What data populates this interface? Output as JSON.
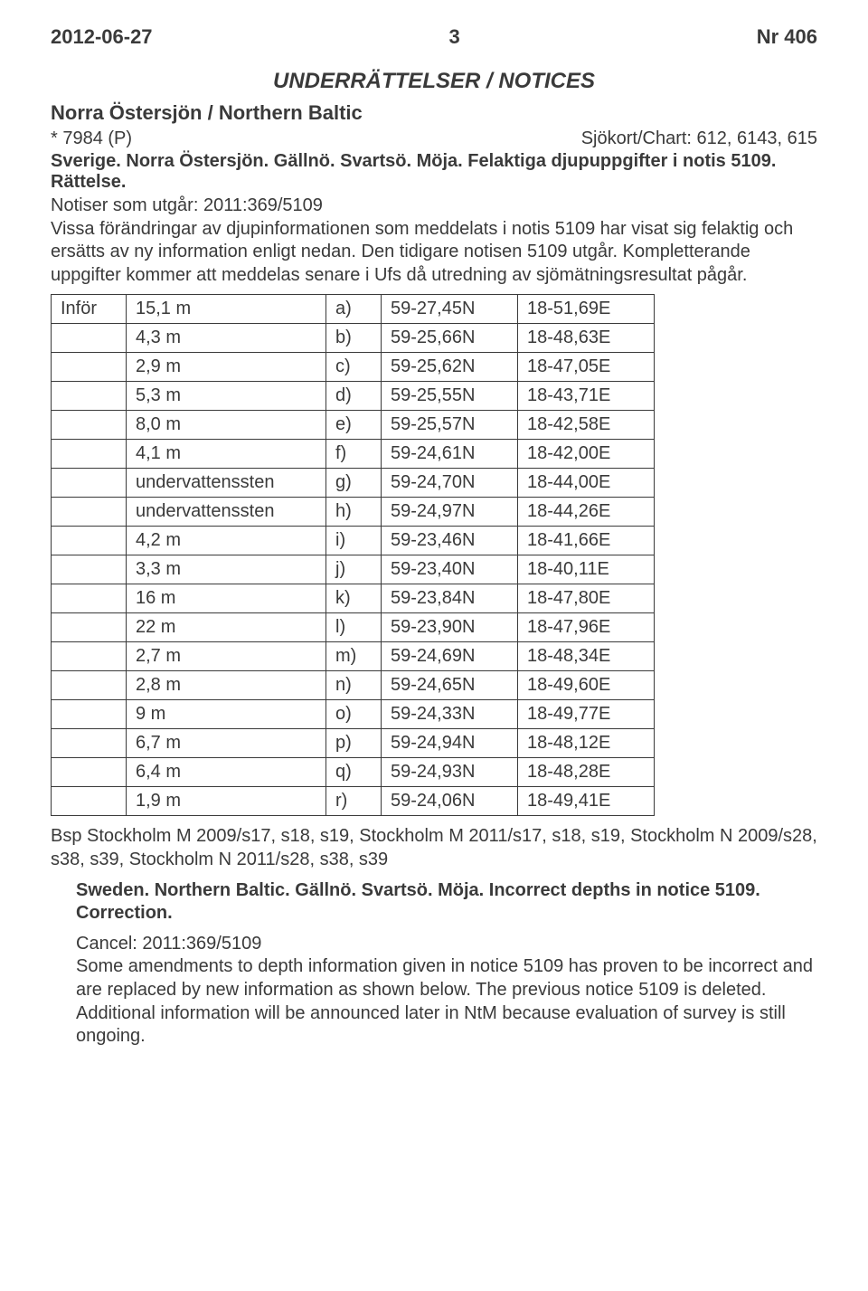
{
  "header": {
    "date": "2012-06-27",
    "page": "3",
    "issue": "Nr 406"
  },
  "main_title": "UNDERRÄTTELSER / NOTICES",
  "region_line": "Norra Östersjön / Northern Baltic",
  "notice_ref": "* 7984 (P)",
  "chart_label": "Sjökort/Chart: 612, 6143, 615",
  "loc_line": "Sverige. Norra Östersjön. Gällnö. Svartsö. Möja. Felaktiga djupuppgifter i notis 5109. Rättelse.",
  "body_sv": "Notiser som utgår: 2011:369/5109\nVissa förändringar av djupinformationen som meddelats i notis 5109 har visat sig felaktig och ersätts av ny information enligt nedan. Den tidigare notisen 5109 utgår. Kompletterande uppgifter kommer att meddelas senare i Ufs då utredning av sjömätningsresultat pågår.",
  "table": {
    "infor_label": "Inför",
    "rows": [
      {
        "val": "15,1 m",
        "letter": "a)",
        "lat": "59-27,45N",
        "lon": "18-51,69E"
      },
      {
        "val": "4,3 m",
        "letter": "b)",
        "lat": "59-25,66N",
        "lon": "18-48,63E"
      },
      {
        "val": "2,9 m",
        "letter": "c)",
        "lat": "59-25,62N",
        "lon": "18-47,05E"
      },
      {
        "val": "5,3 m",
        "letter": "d)",
        "lat": "59-25,55N",
        "lon": "18-43,71E"
      },
      {
        "val": "8,0 m",
        "letter": "e)",
        "lat": "59-25,57N",
        "lon": "18-42,58E"
      },
      {
        "val": "4,1 m",
        "letter": "f)",
        "lat": "59-24,61N",
        "lon": "18-42,00E"
      },
      {
        "val": "undervattenssten",
        "letter": "g)",
        "lat": "59-24,70N",
        "lon": "18-44,00E"
      },
      {
        "val": "undervattenssten",
        "letter": "h)",
        "lat": "59-24,97N",
        "lon": "18-44,26E"
      },
      {
        "val": "4,2 m",
        "letter": "i)",
        "lat": "59-23,46N",
        "lon": "18-41,66E"
      },
      {
        "val": "3,3 m",
        "letter": "j)",
        "lat": "59-23,40N",
        "lon": "18-40,11E"
      },
      {
        "val": "16 m",
        "letter": "k)",
        "lat": "59-23,84N",
        "lon": "18-47,80E"
      },
      {
        "val": "22 m",
        "letter": "l)",
        "lat": "59-23,90N",
        "lon": "18-47,96E"
      },
      {
        "val": "2,7 m",
        "letter": "m)",
        "lat": "59-24,69N",
        "lon": "18-48,34E"
      },
      {
        "val": "2,8 m",
        "letter": "n)",
        "lat": "59-24,65N",
        "lon": "18-49,60E"
      },
      {
        "val": "9 m",
        "letter": "o)",
        "lat": "59-24,33N",
        "lon": "18-49,77E"
      },
      {
        "val": "6,7 m",
        "letter": "p)",
        "lat": "59-24,94N",
        "lon": "18-48,12E"
      },
      {
        "val": "6,4 m",
        "letter": "q)",
        "lat": "59-24,93N",
        "lon": "18-48,28E"
      },
      {
        "val": "1,9 m",
        "letter": "r)",
        "lat": "59-24,06N",
        "lon": "18-49,41E"
      }
    ]
  },
  "bsp_line": "Bsp Stockholm M 2009/s17, s18, s19, Stockholm M 2011/s17, s18, s19, Stockholm N 2009/s28, s38, s39, Stockholm N 2011/s28, s38, s39",
  "en_heading": "Sweden. Northern Baltic. Gällnö. Svartsö. Möja. Incorrect depths in notice 5109. Correction.",
  "en_body": "Cancel: 2011:369/5109\nSome amendments to depth information given in notice 5109 has proven to be incorrect and are replaced by new information as shown below. The previous notice 5109 is deleted. Additional information will be announced later in NtM because evaluation of survey is still ongoing."
}
